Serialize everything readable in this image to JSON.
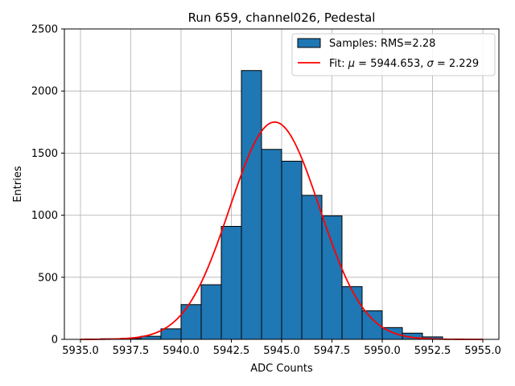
{
  "chart_data": {
    "type": "bar",
    "title": "Run 659, channel026, Pedestal",
    "xlabel": "ADC Counts",
    "ylabel": "Entries",
    "xlim": [
      5934.2,
      5955.8
    ],
    "ylim": [
      0,
      2500
    ],
    "xticks": [
      5935.0,
      5937.5,
      5940.0,
      5942.5,
      5945.0,
      5947.5,
      5950.0,
      5952.5,
      5955.0
    ],
    "xtick_labels": [
      "5935.0",
      "5937.5",
      "5940.0",
      "5942.5",
      "5945.0",
      "5947.5",
      "5950.0",
      "5952.5",
      "5955.0"
    ],
    "yticks": [
      0,
      500,
      1000,
      1500,
      2000,
      2500
    ],
    "ytick_labels": [
      "0",
      "500",
      "1000",
      "1500",
      "2000",
      "2500"
    ],
    "grid": true,
    "legend_position": "top-right",
    "bin_edges": [
      5936,
      5937,
      5938,
      5939,
      5940,
      5941,
      5942,
      5943,
      5944,
      5945,
      5946,
      5947,
      5948,
      5949,
      5950,
      5951,
      5952,
      5953
    ],
    "series": [
      {
        "name": "Samples: RMS=2.28",
        "kind": "histogram",
        "color": "#1f77b4",
        "edgecolor": "#000000",
        "values": [
          5,
          8,
          25,
          85,
          280,
          440,
          910,
          2165,
          1530,
          1435,
          1160,
          995,
          425,
          230,
          95,
          50,
          20
        ]
      },
      {
        "name": "Fit: μ = 5944.653, σ = 2.229",
        "name_parts": {
          "prefix": "Fit: ",
          "mu_symbol": "μ",
          "mu_text": " = 5944.653, ",
          "sigma_symbol": "σ",
          "sigma_text": " = 2.229"
        },
        "kind": "gaussian",
        "color": "#ff0000",
        "mu": 5944.653,
        "sigma": 2.229,
        "amplitude": 1750,
        "x_range": [
          5935.0,
          5955.0
        ]
      }
    ]
  }
}
